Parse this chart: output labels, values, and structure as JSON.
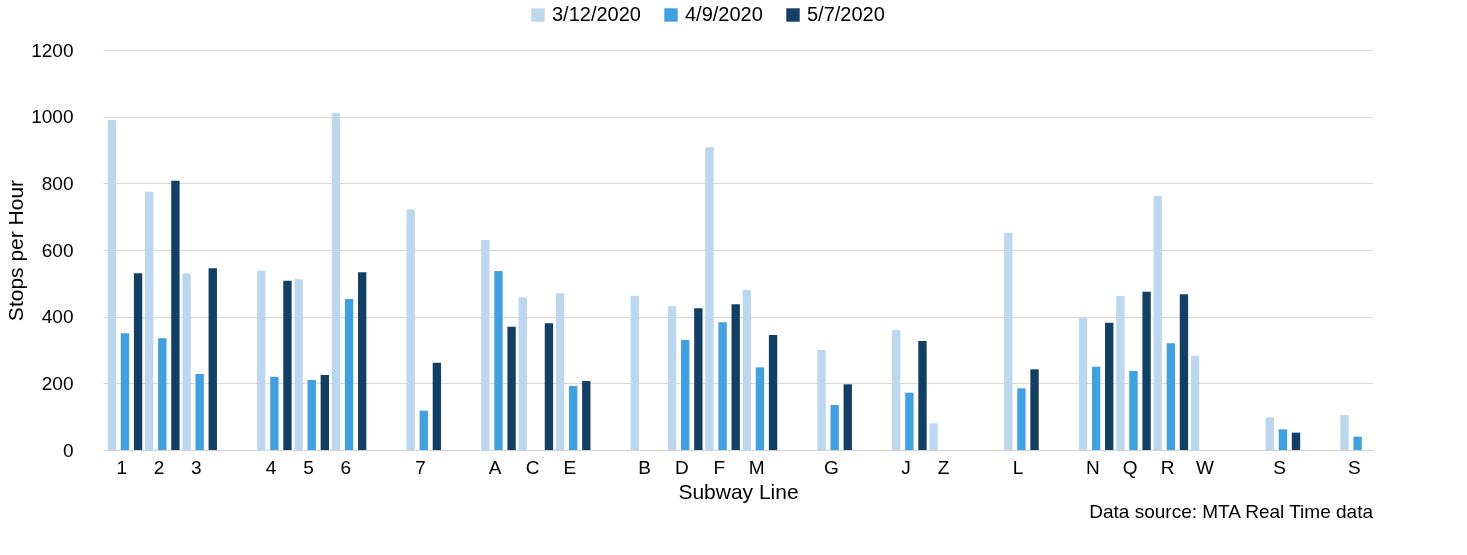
{
  "chart_data": {
    "type": "bar",
    "xlabel": "Subway Line",
    "ylabel": "Stops per Hour",
    "categories": [
      "1",
      "2",
      "3",
      null,
      "4",
      "5",
      "6",
      null,
      "7",
      null,
      "A",
      "C",
      "E",
      null,
      "B",
      "D",
      "F",
      "M",
      null,
      "G",
      null,
      "J",
      "Z",
      null,
      "L",
      null,
      "N",
      "Q",
      "R",
      "W",
      null,
      "S",
      null,
      "S"
    ],
    "series": [
      {
        "name": "3/12/2020",
        "color": "#bdd7ee",
        "values": [
          990,
          775,
          530,
          null,
          538,
          512,
          1010,
          null,
          722,
          null,
          630,
          458,
          470,
          null,
          463,
          432,
          908,
          480,
          null,
          300,
          null,
          360,
          80,
          null,
          652,
          null,
          397,
          462,
          762,
          283,
          null,
          98,
          null,
          105
        ]
      },
      {
        "name": "4/9/2020",
        "color": "#41a0e0",
        "values": [
          350,
          335,
          228,
          null,
          220,
          210,
          453,
          null,
          118,
          null,
          537,
          null,
          192,
          null,
          null,
          330,
          383,
          248,
          null,
          135,
          null,
          172,
          null,
          null,
          185,
          null,
          250,
          237,
          320,
          null,
          null,
          62,
          null,
          40
        ]
      },
      {
        "name": "5/7/2020",
        "color": "#123f63",
        "values": [
          530,
          808,
          545,
          null,
          508,
          225,
          533,
          null,
          262,
          null,
          370,
          380,
          207,
          null,
          null,
          425,
          437,
          345,
          null,
          197,
          null,
          327,
          null,
          null,
          242,
          null,
          382,
          475,
          467,
          null,
          null,
          52,
          null,
          null
        ]
      }
    ],
    "ylim": [
      0,
      1200
    ],
    "yticks": [
      0,
      200,
      400,
      600,
      800,
      1000,
      1200
    ],
    "grid": "y",
    "legend": "top",
    "annotations": [
      "Data source: MTA Real Time data"
    ]
  }
}
